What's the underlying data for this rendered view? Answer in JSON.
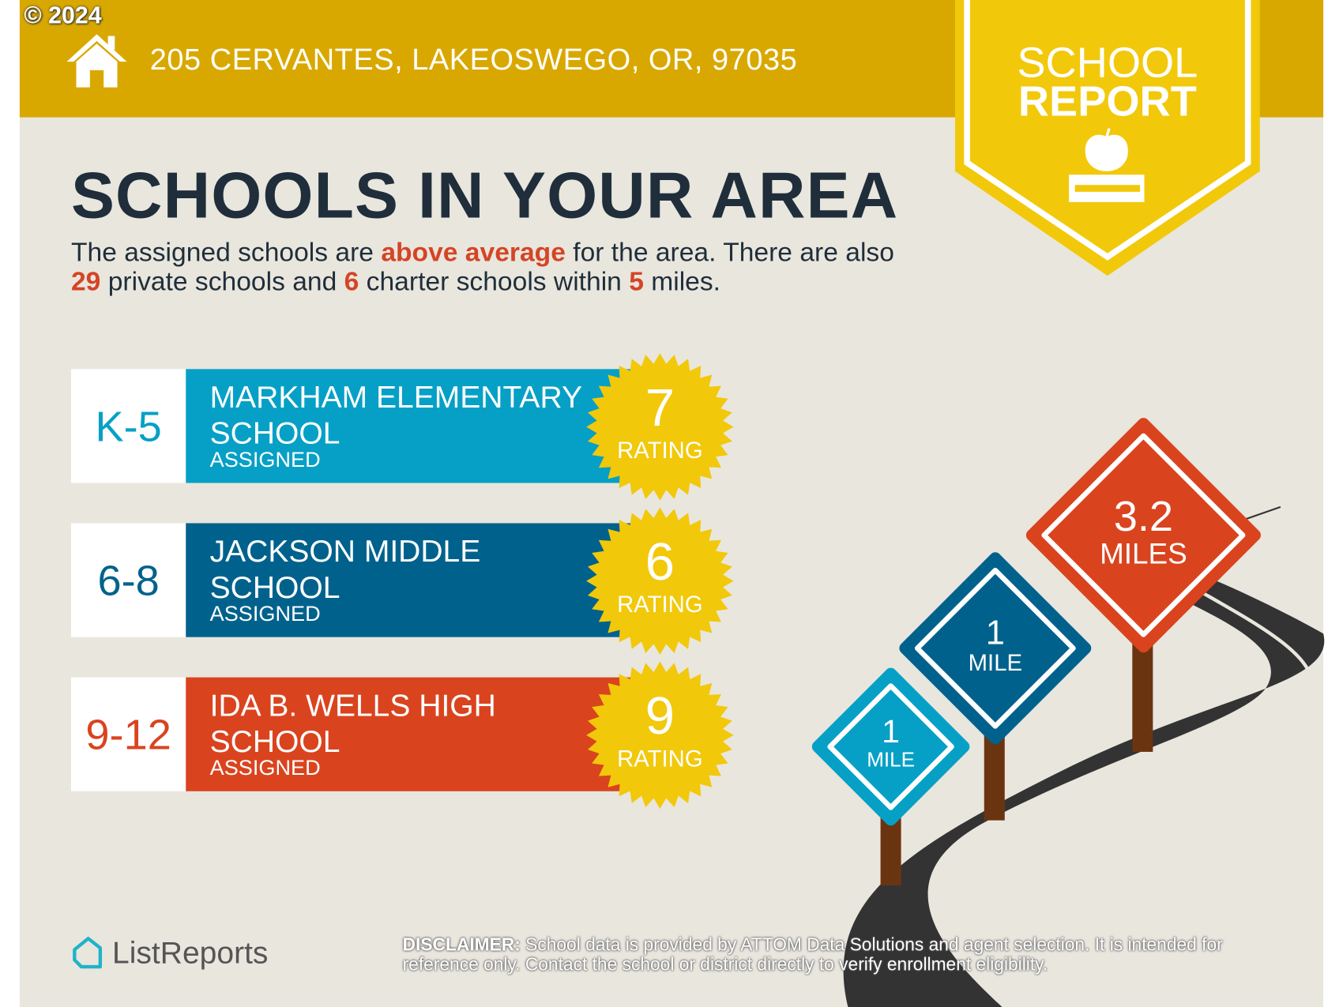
{
  "copyright": "© 2024",
  "address": "205 CERVANTES, LAKEOSWEGO, OR, 97035",
  "badge": {
    "line1": "SCHOOL",
    "line2": "REPORT",
    "icon": "apple-on-book-icon"
  },
  "title": "SCHOOLS IN YOUR AREA",
  "intro": {
    "p1": "The assigned schools are ",
    "hl1": "above average",
    "p2": " for the area. There are also ",
    "private_count": "29",
    "p3": " private schools and ",
    "charter_count": "6",
    "p4": " charter schools within ",
    "miles": "5",
    "p5": " miles."
  },
  "schools": [
    {
      "grades": "K-5",
      "name": "MARKHAM ELEMENTARY SCHOOL",
      "status": "ASSIGNED",
      "rating": "7",
      "rating_label": "RATING",
      "color": "#06A0C6"
    },
    {
      "grades": "6-8",
      "name": "JACKSON MIDDLE SCHOOL",
      "status": "ASSIGNED",
      "rating": "6",
      "rating_label": "RATING",
      "color": "#00628C"
    },
    {
      "grades": "9-12",
      "name": "IDA B. WELLS HIGH SCHOOL",
      "status": "ASSIGNED",
      "rating": "9",
      "rating_label": "RATING",
      "color": "#D9441F"
    }
  ],
  "signs": [
    {
      "value": "3.2",
      "unit": "MILES",
      "color": "#D9441F"
    },
    {
      "value": "1",
      "unit": "MILE",
      "color": "#00628C"
    },
    {
      "value": "1",
      "unit": "MILE",
      "color": "#06A0C6"
    }
  ],
  "logo": "ListReports",
  "disclaimer": {
    "label": "DISCLAIMER:",
    "text": " School data is provided by ATTOM Data Solutions and agent selection. It is intended for reference only. Contact the school or district directly to verify enrollment eligibility."
  },
  "colors": {
    "header": "#D9A800",
    "badge": "#F2C80A",
    "background": "#E9E6DE",
    "title": "#1F2E3A",
    "highlight": "#D44525"
  }
}
